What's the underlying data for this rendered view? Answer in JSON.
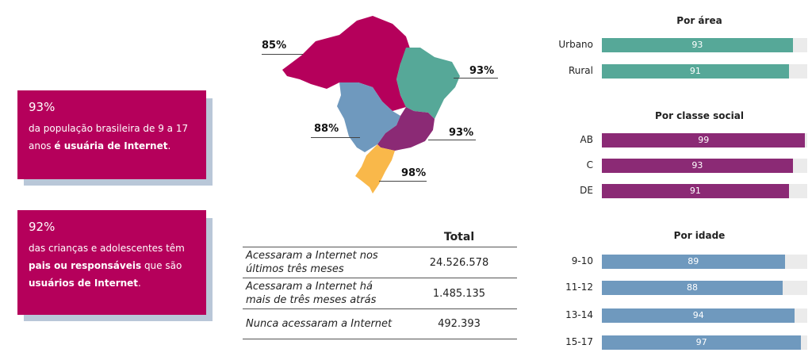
{
  "cards": [
    {
      "pct": "93%",
      "text_plain_1": "da população brasileira de 9 a 17 anos ",
      "text_bold_1": "é usuária de Internet",
      "text_plain_2": ".",
      "text_bold_2": "",
      "text_plain_3": ""
    },
    {
      "pct": "92%",
      "text_plain_1": "das crianças e adolescentes têm ",
      "text_bold_1": "pais ou responsáveis",
      "text_plain_2": " que são ",
      "text_bold_2": "usuários de Internet",
      "text_plain_3": "."
    }
  ],
  "map": {
    "regions": [
      {
        "name": "Norte",
        "pct": "85%",
        "color": "#b5005b"
      },
      {
        "name": "Nordeste",
        "pct": "93%",
        "color": "#56a898"
      },
      {
        "name": "Centro-Oeste",
        "pct": "88%",
        "color": "#6f99be"
      },
      {
        "name": "Sudeste",
        "pct": "93%",
        "color": "#8b2a75"
      },
      {
        "name": "Sul",
        "pct": "98%",
        "color": "#f9b84a"
      }
    ]
  },
  "table": {
    "header": "Total",
    "rows": [
      {
        "label": "Acessaram a Internet nos últimos três meses",
        "value": "24.526.578"
      },
      {
        "label": "Acessaram a Internet há mais de três meses atrás",
        "value": "1.485.135"
      },
      {
        "label": "Nunca acessaram a Internet",
        "value": "492.393"
      }
    ]
  },
  "chart_data": [
    {
      "type": "bar",
      "title": "Por área",
      "categories": [
        "Urbano",
        "Rural"
      ],
      "values": [
        93,
        91
      ],
      "color": "#56a898",
      "xlim": [
        0,
        100
      ]
    },
    {
      "type": "bar",
      "title": "Por classe social",
      "categories": [
        "AB",
        "C",
        "DE"
      ],
      "values": [
        99,
        93,
        91
      ],
      "color": "#8b2a75",
      "xlim": [
        0,
        100
      ]
    },
    {
      "type": "bar",
      "title": "Por idade",
      "categories": [
        "9-10",
        "11-12",
        "13-14",
        "15-17"
      ],
      "values": [
        89,
        88,
        94,
        97
      ],
      "color": "#6f99be",
      "xlim": [
        0,
        100
      ]
    }
  ]
}
